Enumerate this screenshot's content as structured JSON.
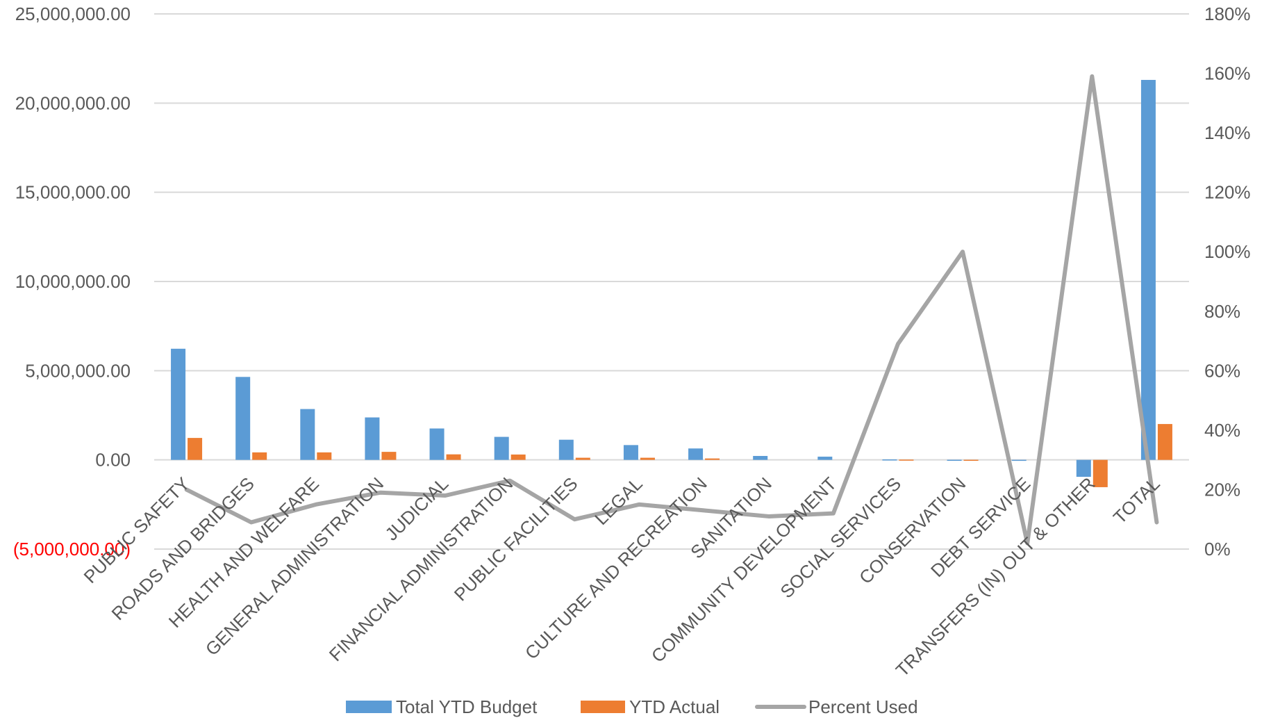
{
  "chart_data": {
    "type": "bar",
    "categories": [
      "PUBLIC SAFETY",
      "ROADS AND BRIDGES",
      "HEALTH AND WELFARE",
      "GENERAL ADMINISTRATION",
      "JUDICIAL",
      "FINANCIAL ADMINISTRATION",
      "PUBLIC FACILITIES",
      "LEGAL",
      "CULTURE AND RECREATION",
      "SANITATION",
      "COMMUNITY DEVELOPMENT",
      "SOCIAL SERVICES",
      "CONSERVATION",
      "DEBT SERVICE",
      "TRANSFERS (IN) OUT & OTHER",
      "TOTAL"
    ],
    "series": [
      {
        "name": "Total YTD Budget",
        "kind": "bar",
        "axis": "left",
        "color": "#5b9bd5",
        "values": [
          6230000,
          4650000,
          2850000,
          2380000,
          1760000,
          1290000,
          1130000,
          830000,
          640000,
          220000,
          180000,
          25000,
          5000,
          3000,
          -950000,
          21300000
        ]
      },
      {
        "name": "YTD Actual",
        "kind": "bar",
        "axis": "left",
        "color": "#ed7d31",
        "values": [
          1230000,
          420000,
          420000,
          450000,
          310000,
          300000,
          120000,
          120000,
          80000,
          0,
          0,
          15000,
          5000,
          0,
          -1530000,
          2010000
        ]
      },
      {
        "name": "Percent Used",
        "kind": "line",
        "axis": "right",
        "color": "#a5a5a5",
        "values": [
          0.2,
          0.09,
          0.15,
          0.19,
          0.18,
          0.23,
          0.1,
          0.15,
          0.13,
          0.11,
          0.12,
          0.69,
          1.0,
          0.02,
          1.59,
          0.09
        ]
      }
    ],
    "y_left": {
      "range": [
        -5000000,
        25000000
      ],
      "ticks": [
        25000000,
        20000000,
        15000000,
        10000000,
        5000000,
        0,
        -5000000
      ],
      "tick_labels": [
        "25,000,000.00",
        "20,000,000.00",
        "15,000,000.00",
        "10,000,000.00",
        "5,000,000.00",
        "0.00",
        "(5,000,000.00)"
      ],
      "negative_label_color": "#ff0000"
    },
    "y_right": {
      "range": [
        0,
        1.8
      ],
      "ticks": [
        1.8,
        1.6,
        1.4,
        1.2,
        1.0,
        0.8,
        0.6,
        0.4,
        0.2,
        0
      ],
      "tick_labels": [
        "180%",
        "160%",
        "140%",
        "120%",
        "100%",
        "80%",
        "60%",
        "40%",
        "20%",
        "0%"
      ]
    },
    "grid": true,
    "legend": "bottom",
    "legend_entries": [
      "Total YTD Budget",
      "YTD Actual",
      "Percent Used"
    ]
  }
}
